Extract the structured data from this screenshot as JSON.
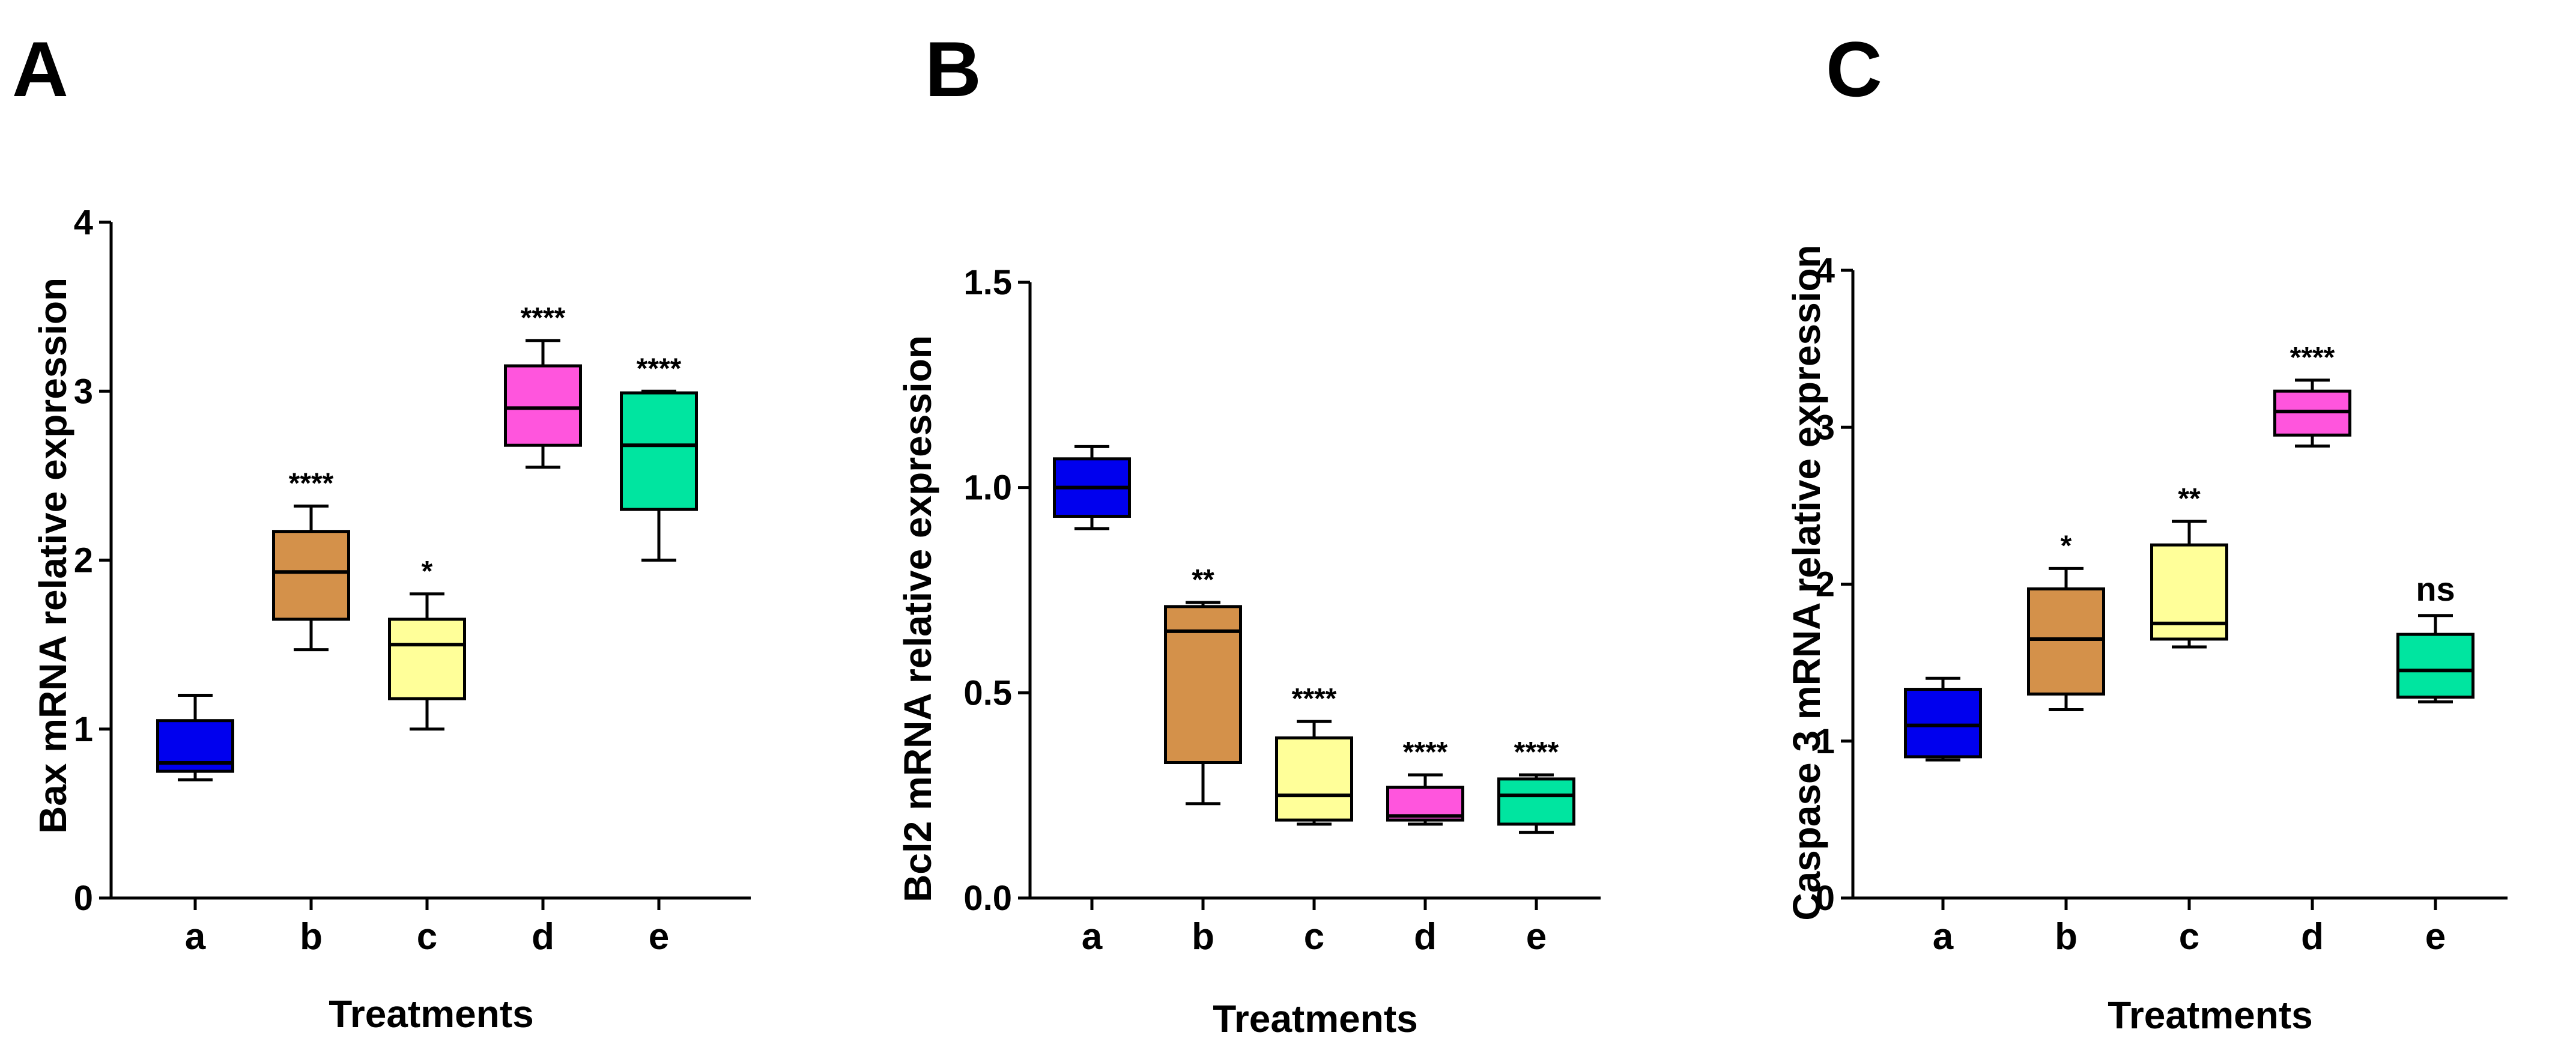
{
  "chart_data": [
    {
      "panel": "A",
      "type": "box",
      "xlabel": "Treatments",
      "ylabel": "Bax mRNA relative expression",
      "ylim": [
        0,
        4
      ],
      "yticks": [
        0,
        1,
        2,
        3,
        4
      ],
      "ytick_labels": [
        "0",
        "1",
        "2",
        "3",
        "4"
      ],
      "categories": [
        "a",
        "b",
        "c",
        "d",
        "e"
      ],
      "colors": [
        "#0000ee",
        "#d4914a",
        "#ffff99",
        "#ff55dd",
        "#00e5a0"
      ],
      "boxes": [
        {
          "min": 0.7,
          "q1": 0.75,
          "median": 0.8,
          "q3": 1.05,
          "max": 1.2,
          "sig": ""
        },
        {
          "min": 1.47,
          "q1": 1.65,
          "median": 1.93,
          "q3": 2.17,
          "max": 2.32,
          "sig": "****"
        },
        {
          "min": 1.0,
          "q1": 1.18,
          "median": 1.5,
          "q3": 1.65,
          "max": 1.8,
          "sig": "*"
        },
        {
          "min": 2.55,
          "q1": 2.68,
          "median": 2.9,
          "q3": 3.15,
          "max": 3.3,
          "sig": "****"
        },
        {
          "min": 2.0,
          "q1": 2.3,
          "median": 2.68,
          "q3": 2.99,
          "max": 3.0,
          "sig": "****"
        }
      ]
    },
    {
      "panel": "B",
      "type": "box",
      "xlabel": "Treatments",
      "ylabel": "Bcl2 mRNA relative expression",
      "ylim": [
        0,
        1.5
      ],
      "yticks": [
        0,
        0.5,
        1.0,
        1.5
      ],
      "ytick_labels": [
        "0.0",
        "0.5",
        "1.0",
        "1.5"
      ],
      "categories": [
        "a",
        "b",
        "c",
        "d",
        "e"
      ],
      "colors": [
        "#0000ee",
        "#d4914a",
        "#ffff99",
        "#ff55dd",
        "#00e5a0"
      ],
      "boxes": [
        {
          "min": 0.9,
          "q1": 0.93,
          "median": 1.0,
          "q3": 1.07,
          "max": 1.1,
          "sig": ""
        },
        {
          "min": 0.23,
          "q1": 0.33,
          "median": 0.65,
          "q3": 0.71,
          "max": 0.72,
          "sig": "**"
        },
        {
          "min": 0.18,
          "q1": 0.19,
          "median": 0.25,
          "q3": 0.39,
          "max": 0.43,
          "sig": "****"
        },
        {
          "min": 0.18,
          "q1": 0.19,
          "median": 0.2,
          "q3": 0.27,
          "max": 0.3,
          "sig": "****"
        },
        {
          "min": 0.16,
          "q1": 0.18,
          "median": 0.25,
          "q3": 0.29,
          "max": 0.3,
          "sig": "****"
        }
      ]
    },
    {
      "panel": "C",
      "type": "box",
      "xlabel": "Treatments",
      "ylabel": "Caspase 3 mRNA relative expression",
      "ylim": [
        0,
        4
      ],
      "yticks": [
        0,
        1,
        2,
        3,
        4
      ],
      "ytick_labels": [
        "0",
        "1",
        "2",
        "3",
        "4"
      ],
      "categories": [
        "a",
        "b",
        "c",
        "d",
        "e"
      ],
      "colors": [
        "#0000ee",
        "#d4914a",
        "#ffff99",
        "#ff55dd",
        "#00e5a0"
      ],
      "boxes": [
        {
          "min": 0.88,
          "q1": 0.9,
          "median": 1.1,
          "q3": 1.33,
          "max": 1.4,
          "sig": ""
        },
        {
          "min": 1.2,
          "q1": 1.3,
          "median": 1.65,
          "q3": 1.97,
          "max": 2.1,
          "sig": "*"
        },
        {
          "min": 1.6,
          "q1": 1.65,
          "median": 1.75,
          "q3": 2.25,
          "max": 2.4,
          "sig": "**"
        },
        {
          "min": 2.88,
          "q1": 2.95,
          "median": 3.1,
          "q3": 3.23,
          "max": 3.3,
          "sig": "****"
        },
        {
          "min": 1.25,
          "q1": 1.28,
          "median": 1.45,
          "q3": 1.68,
          "max": 1.8,
          "sig": "ns"
        }
      ]
    }
  ]
}
